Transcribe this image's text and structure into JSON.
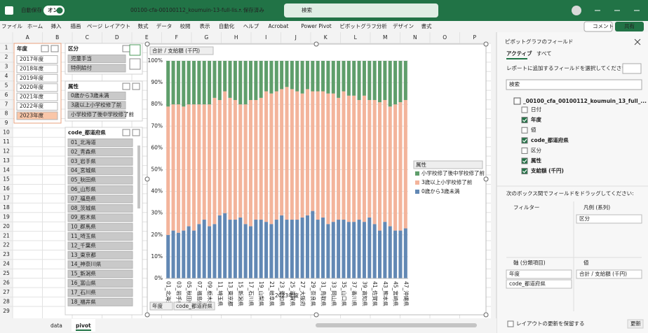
{
  "title_bar": {
    "autosave": "自動保存",
    "toggle": "オン",
    "filename": "00100-cfa-00100112_koumuin-13-full-lis...",
    "status": "• 保存済み",
    "search": "検索"
  },
  "ribbon": {
    "tabs": [
      "ファイル",
      "ホーム",
      "挿入",
      "描画",
      "ページ レイアウト",
      "数式",
      "データ",
      "校閲",
      "表示",
      "自動化",
      "ヘルプ",
      "Acrobat",
      "Power Pivot",
      "ピボットグラフ分析",
      "デザイン",
      "書式"
    ],
    "comment": "コメント",
    "share": "共有"
  },
  "sheet": {
    "columns": [
      "A",
      "B",
      "C",
      "D",
      "E",
      "F",
      "G",
      "H",
      "I",
      "J",
      "K",
      "L",
      "M",
      "N",
      "O",
      "P"
    ],
    "rows": [
      1,
      2,
      3,
      4,
      5,
      6,
      7,
      8,
      9,
      10,
      11,
      12,
      13,
      14,
      15,
      16,
      17,
      18,
      19,
      20,
      21,
      22,
      23,
      24,
      25,
      26,
      27,
      28,
      29
    ]
  },
  "slicers": [
    {
      "title": "年度",
      "color": "#f9c6a8",
      "items": [
        {
          "label": "2017年度",
          "selected": false
        },
        {
          "label": "2018年度",
          "selected": false
        },
        {
          "label": "2019年度",
          "selected": false
        },
        {
          "label": "2020年度",
          "selected": false
        },
        {
          "label": "2021年度",
          "selected": false
        },
        {
          "label": "2022年度",
          "selected": false
        },
        {
          "label": "2023年度",
          "selected": true
        }
      ]
    },
    {
      "title": "区分",
      "color": "#c9c9c9",
      "items": [
        {
          "label": "児童手当",
          "selected": true
        },
        {
          "label": "特例給付",
          "selected": true
        }
      ]
    },
    {
      "title": "属性",
      "color": "#c9c9c9",
      "items": [
        {
          "label": "0歳から3歳未満",
          "selected": true
        },
        {
          "label": "3歳以上小学校修了前",
          "selected": true
        },
        {
          "label": "小学校修了後中学校修了前",
          "selected": true
        }
      ]
    },
    {
      "title": "code_都道府県",
      "color": "#c9c9c9",
      "items": [
        {
          "label": "01_北海道",
          "selected": true
        },
        {
          "label": "02_青森県",
          "selected": true
        },
        {
          "label": "03_岩手県",
          "selected": true
        },
        {
          "label": "04_宮城県",
          "selected": true
        },
        {
          "label": "05_秋田県",
          "selected": true
        },
        {
          "label": "06_山形県",
          "selected": true
        },
        {
          "label": "07_福島県",
          "selected": true
        },
        {
          "label": "08_茨城県",
          "selected": true
        },
        {
          "label": "09_栃木県",
          "selected": true
        },
        {
          "label": "10_群馬県",
          "selected": true
        },
        {
          "label": "11_埼玉県",
          "selected": true
        },
        {
          "label": "12_千葉県",
          "selected": true
        },
        {
          "label": "13_東京都",
          "selected": true
        },
        {
          "label": "14_神奈川県",
          "selected": true
        },
        {
          "label": "15_新潟県",
          "selected": true
        },
        {
          "label": "16_富山県",
          "selected": true
        },
        {
          "label": "17_石川県",
          "selected": true
        },
        {
          "label": "18_福井県",
          "selected": true
        }
      ]
    }
  ],
  "chart_data": {
    "type": "bar",
    "stacked": true,
    "field_button": "合計 / 支給額 (千円)",
    "legend_title": "属性",
    "x_title": "2023年度",
    "axis_buttons": [
      "年度",
      "code_都道府県"
    ],
    "categories": [
      "01_北海道",
      null,
      "03_岩手県",
      null,
      "05_秋田県",
      null,
      "07_福島県",
      null,
      "09_栃木県",
      null,
      "11_埼玉県",
      null,
      "13_東京都",
      null,
      "15_新潟県",
      null,
      "17_石川県",
      null,
      "19_山梨県",
      null,
      "21_岐阜県",
      null,
      "23_愛知県",
      null,
      "25_滋賀県",
      null,
      "27_大阪府",
      null,
      "29_奈良県",
      null,
      "31_鳥取県",
      null,
      "33_岡山県",
      null,
      "35_山口県",
      null,
      "37_香川県",
      null,
      "39_高知県",
      null,
      "41_佐賀県",
      null,
      "43_熊本県",
      null,
      "45_宮崎県",
      null,
      "47_沖縄県"
    ],
    "series": [
      {
        "name": "0歳から3歳未満",
        "color": "#6288b4",
        "values": [
          20,
          22,
          21,
          22,
          24,
          22,
          25,
          27,
          24,
          25,
          29,
          30,
          27,
          27,
          28,
          25,
          24,
          27,
          27,
          26,
          25,
          27,
          29,
          27,
          27,
          27,
          28,
          29,
          31,
          27,
          28,
          25,
          26,
          27,
          27,
          26,
          26,
          27,
          26,
          28,
          25,
          22,
          26,
          24,
          22,
          22,
          23
        ]
      },
      {
        "name": "3歳以上小学校修了前",
        "color": "#f3b49b",
        "values": [
          59,
          58,
          59,
          57,
          56,
          58,
          55,
          53,
          56,
          58,
          53,
          56,
          56,
          55,
          52,
          55,
          58,
          55,
          56,
          60,
          60,
          59,
          58,
          61,
          60,
          59,
          57,
          58,
          55,
          59,
          58,
          60,
          59,
          56,
          59,
          58,
          58,
          55,
          58,
          54,
          57,
          59,
          56,
          55,
          58,
          59,
          59
        ]
      },
      {
        "name": "小学校修了後中学校修了前",
        "color": "#5f9e6b",
        "values": [
          21,
          20,
          20,
          21,
          20,
          20,
          20,
          20,
          20,
          17,
          18,
          14,
          17,
          18,
          20,
          20,
          18,
          18,
          17,
          14,
          15,
          14,
          13,
          12,
          13,
          14,
          15,
          13,
          14,
          14,
          14,
          15,
          15,
          17,
          14,
          16,
          16,
          18,
          16,
          18,
          18,
          19,
          18,
          21,
          20,
          19,
          18
        ]
      }
    ],
    "ylim": [
      0,
      100
    ],
    "yticks": [
      {
        "value": 0,
        "label": "0%"
      },
      {
        "value": 10,
        "label": "10%"
      },
      {
        "value": 20,
        "label": "20%"
      },
      {
        "value": 30,
        "label": "30%"
      },
      {
        "value": 40,
        "label": "40%"
      },
      {
        "value": 50,
        "label": "50%"
      },
      {
        "value": 60,
        "label": "60%"
      },
      {
        "value": 70,
        "label": "70%"
      },
      {
        "value": 80,
        "label": "80%"
      },
      {
        "value": 90,
        "label": "90%"
      },
      {
        "value": 100,
        "label": "100%"
      }
    ],
    "grid": true
  },
  "field_list": {
    "title": "ピボットグラフのフィールド",
    "tabs": [
      "アクティブ",
      "すべて"
    ],
    "instruction": "レポートに追加するフィールドを選択してください:",
    "search": "検索",
    "table": "_00100_cfa_00100112_koumuin_13_full_...",
    "fields": [
      {
        "label": "日付",
        "checked": false
      },
      {
        "label": "年度",
        "checked": true
      },
      {
        "label": "値",
        "checked": false
      },
      {
        "label": "code_都道府県",
        "checked": true
      },
      {
        "label": "区分",
        "checked": false
      },
      {
        "label": "属性",
        "checked": true
      },
      {
        "label": "支給額 (千円)",
        "checked": true
      }
    ],
    "drag_instruction": "次のボックス間でフィールドをドラッグしてください:",
    "areas": [
      {
        "label": "フィルター",
        "items": []
      },
      {
        "label": "凡例 (系列)",
        "items": [
          "区分"
        ]
      },
      {
        "label": "軸 (分類項目)",
        "items": [
          "年度",
          "code_都道府県"
        ]
      },
      {
        "label": "値",
        "items": [
          "合計 / 支給額 (千円)"
        ]
      }
    ],
    "defer": "レイアウトの更新を保留する",
    "update": "更新"
  },
  "sheet_tabs": {
    "tabs": [
      "data",
      "pivot"
    ],
    "active": 1
  }
}
